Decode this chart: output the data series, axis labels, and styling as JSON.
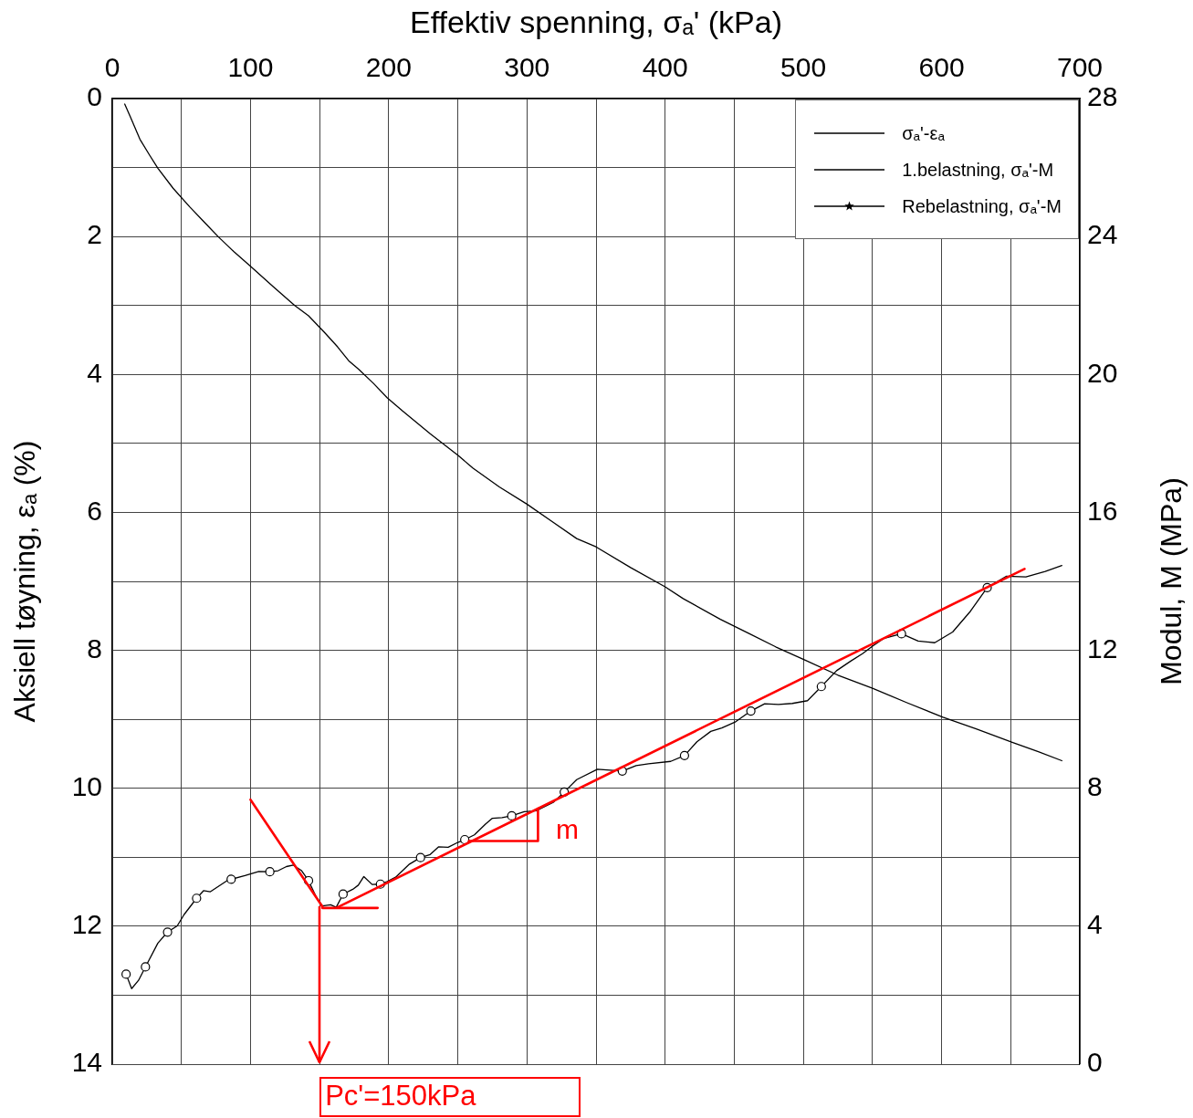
{
  "chart_data": {
    "type": "line",
    "xlabel": "Effektiv spenning, σₐ' (kPa)",
    "ylabel": "Aksiell tøyning, εₐ (%)",
    "y2label": "Modul, M (MPa)",
    "xlim": [
      0,
      700
    ],
    "xticks": [
      0,
      {
        "value": 50,
        "label": null
      },
      100,
      {
        "value": 150,
        "label": null
      },
      200,
      {
        "value": 250,
        "label": null
      },
      300,
      {
        "value": 350,
        "label": null
      },
      400,
      {
        "value": 450,
        "label": null
      },
      500,
      {
        "value": 550,
        "label": null
      },
      600,
      {
        "value": 650,
        "label": null
      },
      700
    ],
    "ylim": [
      14,
      0
    ],
    "yticks": [
      0,
      {
        "value": 1,
        "label": null
      },
      2,
      {
        "value": 3,
        "label": null
      },
      4,
      {
        "value": 5,
        "label": null
      },
      6,
      {
        "value": 7,
        "label": null
      },
      8,
      {
        "value": 9,
        "label": null
      },
      10,
      {
        "value": 11,
        "label": null
      },
      12,
      {
        "value": 13,
        "label": null
      },
      14
    ],
    "y2lim": [
      0,
      28
    ],
    "y2ticks": [
      0,
      4,
      8,
      12,
      16,
      20,
      24,
      28
    ],
    "grid": true,
    "legend": "top right",
    "series": [
      {
        "type": "line",
        "name": "σₐ'-εₐ",
        "color": "#000000",
        "x": [
          9,
          13,
          20,
          27,
          33,
          44,
          56,
          66,
          77,
          88,
          100,
          116,
          132,
          142,
          154,
          163,
          171,
          178,
          189,
          199,
          210,
          230,
          250,
          261,
          280,
          300,
          318,
          336,
          350,
          375,
          400,
          413,
          440,
          461,
          480,
          501,
          525,
          550,
          575,
          601,
          625,
          652,
          670,
          687
        ],
        "values": [
          0.08,
          0.26,
          0.59,
          0.82,
          1.01,
          1.3,
          1.57,
          1.78,
          2.01,
          2.22,
          2.43,
          2.72,
          3.0,
          3.15,
          3.4,
          3.6,
          3.8,
          3.92,
          4.13,
          4.34,
          4.53,
          4.86,
          5.17,
          5.36,
          5.63,
          5.88,
          6.13,
          6.38,
          6.5,
          6.8,
          7.08,
          7.25,
          7.55,
          7.76,
          7.95,
          8.14,
          8.36,
          8.55,
          8.76,
          8.97,
          9.14,
          9.34,
          9.47,
          9.6
        ]
      },
      {
        "type": "line",
        "name": "1.belastning, σₐ'-M",
        "color": "#000000",
        "axis": "y2",
        "x": [
          10,
          14,
          19,
          24,
          33,
          40,
          47,
          52,
          61,
          66,
          71,
          83,
          86,
          96,
          106,
          114,
          120,
          126,
          131,
          137,
          142,
          148,
          152,
          158,
          162,
          167,
          174,
          178,
          182,
          188,
          194,
          199,
          205,
          215,
          223,
          230,
          236,
          243,
          250,
          255,
          262,
          270,
          275,
          282,
          289,
          298,
          307,
          319,
          327,
          336,
          351,
          369,
          379,
          388,
          404,
          414,
          423,
          433,
          441,
          451,
          462,
          472,
          482,
          492,
          503,
          513,
          524,
          534,
          543,
          550,
          558,
          571,
          583,
          595,
          608,
          621,
          633,
          647,
          661,
          675,
          687
        ],
        "values": [
          2.61,
          2.19,
          2.43,
          2.82,
          3.51,
          3.83,
          4.01,
          4.34,
          4.81,
          5.03,
          5.0,
          5.32,
          5.36,
          5.47,
          5.59,
          5.58,
          5.61,
          5.73,
          5.77,
          5.61,
          5.32,
          4.81,
          4.59,
          4.62,
          4.55,
          4.93,
          5.07,
          5.19,
          5.44,
          5.21,
          5.22,
          5.3,
          5.42,
          5.8,
          5.99,
          6.08,
          6.3,
          6.29,
          6.43,
          6.51,
          6.65,
          6.96,
          7.13,
          7.15,
          7.2,
          7.32,
          7.35,
          7.59,
          7.89,
          8.25,
          8.55,
          8.5,
          8.66,
          8.71,
          8.78,
          8.95,
          9.35,
          9.65,
          9.75,
          9.93,
          10.24,
          10.45,
          10.43,
          10.46,
          10.54,
          10.95,
          11.41,
          11.68,
          11.91,
          12.12,
          12.34,
          12.48,
          12.27,
          12.22,
          12.53,
          13.14,
          13.82,
          14.15,
          14.13,
          14.29,
          14.46
        ]
      },
      {
        "type": "scatter",
        "color": "#000000",
        "axis": "y2",
        "marker": "circle",
        "x": [
          10,
          24,
          40,
          61,
          86,
          114,
          142,
          167,
          194,
          223,
          255,
          289,
          327,
          369,
          414,
          462,
          513,
          571,
          633
        ],
        "values": [
          2.61,
          2.82,
          3.83,
          4.81,
          5.36,
          5.58,
          5.32,
          4.93,
          5.22,
          5.99,
          6.51,
          7.2,
          7.89,
          8.5,
          8.95,
          10.24,
          10.95,
          12.48,
          13.82
        ]
      },
      {
        "type": "line",
        "name": "Rebelastning, σₐ'-M",
        "color": "#000000",
        "axis": "y2",
        "marker": "star"
      },
      {
        "type": "line",
        "color": "#ff0000",
        "axis": "y2",
        "x": [
          163,
          660
        ],
        "values": [
          4.55,
          14.36
        ]
      },
      {
        "type": "line",
        "color": "#ff0000",
        "axis": "y2",
        "x": [
          100,
          152
        ],
        "values": [
          7.67,
          4.57
        ]
      },
      {
        "type": "line",
        "color": "#ff0000",
        "axis": "y2",
        "x": [
          152,
          192
        ],
        "values": [
          4.53,
          4.53
        ]
      },
      {
        "type": "line",
        "color": "#ff0000",
        "axis": "y2",
        "x": [
          258,
          308,
          308
        ],
        "values": [
          6.47,
          6.47,
          7.41
        ]
      }
    ],
    "ref_lines": [
      {
        "axis": "x",
        "value": 150,
        "label": "Pc'=150kPa",
        "color": "#ff0000"
      }
    ],
    "annotations": [
      "m"
    ]
  }
}
